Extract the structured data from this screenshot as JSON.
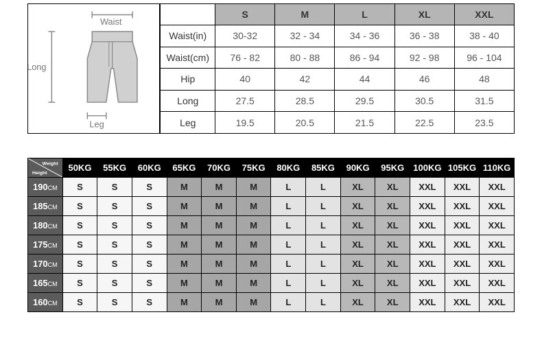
{
  "diagram": {
    "labels": {
      "waist": "Waist",
      "long": "Long",
      "leg": "Leg"
    }
  },
  "sizeTable": {
    "sizes": [
      "S",
      "M",
      "L",
      "XL",
      "XXL"
    ],
    "rows": [
      {
        "label": "Waist(in)",
        "values": [
          "30-32",
          "32 - 34",
          "34 - 36",
          "36 - 38",
          "38 - 40"
        ]
      },
      {
        "label": "Waist(cm)",
        "values": [
          "76 - 82",
          "80 - 88",
          "86 - 94",
          "92 - 98",
          "96 - 104"
        ]
      },
      {
        "label": "Hip",
        "values": [
          "40",
          "42",
          "44",
          "46",
          "48"
        ]
      },
      {
        "label": "Long",
        "values": [
          "27.5",
          "28.5",
          "29.5",
          "30.5",
          "31.5"
        ]
      },
      {
        "label": "Leg",
        "values": [
          "19.5",
          "20.5",
          "21.5",
          "22.5",
          "23.5"
        ]
      }
    ]
  },
  "hwTable": {
    "cornerLabels": {
      "top": "Weight",
      "bottom": "Height"
    },
    "weights": [
      "50KG",
      "55KG",
      "60KG",
      "65KG",
      "70KG",
      "75KG",
      "80KG",
      "85KG",
      "90KG",
      "95KG",
      "100KG",
      "105KG",
      "110KG"
    ],
    "heights": [
      "190",
      "185",
      "180",
      "175",
      "170",
      "165",
      "160"
    ],
    "heightUnit": "CM",
    "grid": [
      [
        "S",
        "S",
        "S",
        "M",
        "M",
        "M",
        "L",
        "L",
        "XL",
        "XL",
        "XXL",
        "XXL",
        "XXL"
      ],
      [
        "S",
        "S",
        "S",
        "M",
        "M",
        "M",
        "L",
        "L",
        "XL",
        "XL",
        "XXL",
        "XXL",
        "XXL"
      ],
      [
        "S",
        "S",
        "S",
        "M",
        "M",
        "M",
        "L",
        "L",
        "XL",
        "XL",
        "XXL",
        "XXL",
        "XXL"
      ],
      [
        "S",
        "S",
        "S",
        "M",
        "M",
        "M",
        "L",
        "L",
        "XL",
        "XL",
        "XXL",
        "XXL",
        "XXL"
      ],
      [
        "S",
        "S",
        "S",
        "M",
        "M",
        "M",
        "L",
        "L",
        "XL",
        "XL",
        "XXL",
        "XXL",
        "XXL"
      ],
      [
        "S",
        "S",
        "S",
        "M",
        "M",
        "M",
        "L",
        "L",
        "XL",
        "XL",
        "XXL",
        "XXL",
        "XXL"
      ],
      [
        "S",
        "S",
        "S",
        "M",
        "M",
        "M",
        "L",
        "L",
        "XL",
        "XL",
        "XXL",
        "XXL",
        "XXL"
      ]
    ],
    "colorMap": {
      "S": "c-s",
      "M": "c-m",
      "L": "c-l",
      "XL": "c-xl",
      "XXL": "c-xxl"
    }
  }
}
